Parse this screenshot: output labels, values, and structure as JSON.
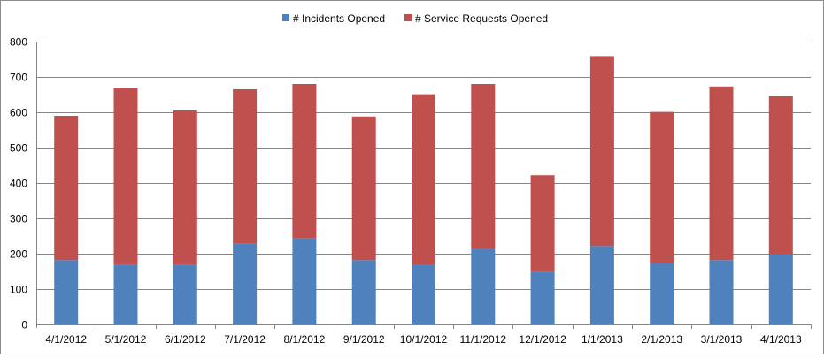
{
  "chart_data": {
    "type": "bar",
    "stacked": true,
    "categories": [
      "4/1/2012",
      "5/1/2012",
      "6/1/2012",
      "7/1/2012",
      "8/1/2012",
      "9/1/2012",
      "10/1/2012",
      "11/1/2012",
      "12/1/2012",
      "1/1/2013",
      "2/1/2013",
      "3/1/2013",
      "4/1/2013"
    ],
    "series": [
      {
        "name": "# Incidents Opened",
        "color": "#4f81bd",
        "values": [
          182,
          168,
          168,
          228,
          243,
          182,
          170,
          215,
          148,
          222,
          173,
          182,
          198
        ]
      },
      {
        "name": "# Service Requests Opened",
        "color": "#c0504d",
        "values": [
          408,
          500,
          437,
          437,
          437,
          406,
          481,
          465,
          274,
          537,
          428,
          491,
          447
        ]
      }
    ],
    "ylim": [
      0,
      800
    ],
    "yticks": [
      0,
      100,
      200,
      300,
      400,
      500,
      600,
      700,
      800
    ],
    "grid": true,
    "legend_position": "top",
    "title": "",
    "xlabel": "",
    "ylabel": ""
  }
}
